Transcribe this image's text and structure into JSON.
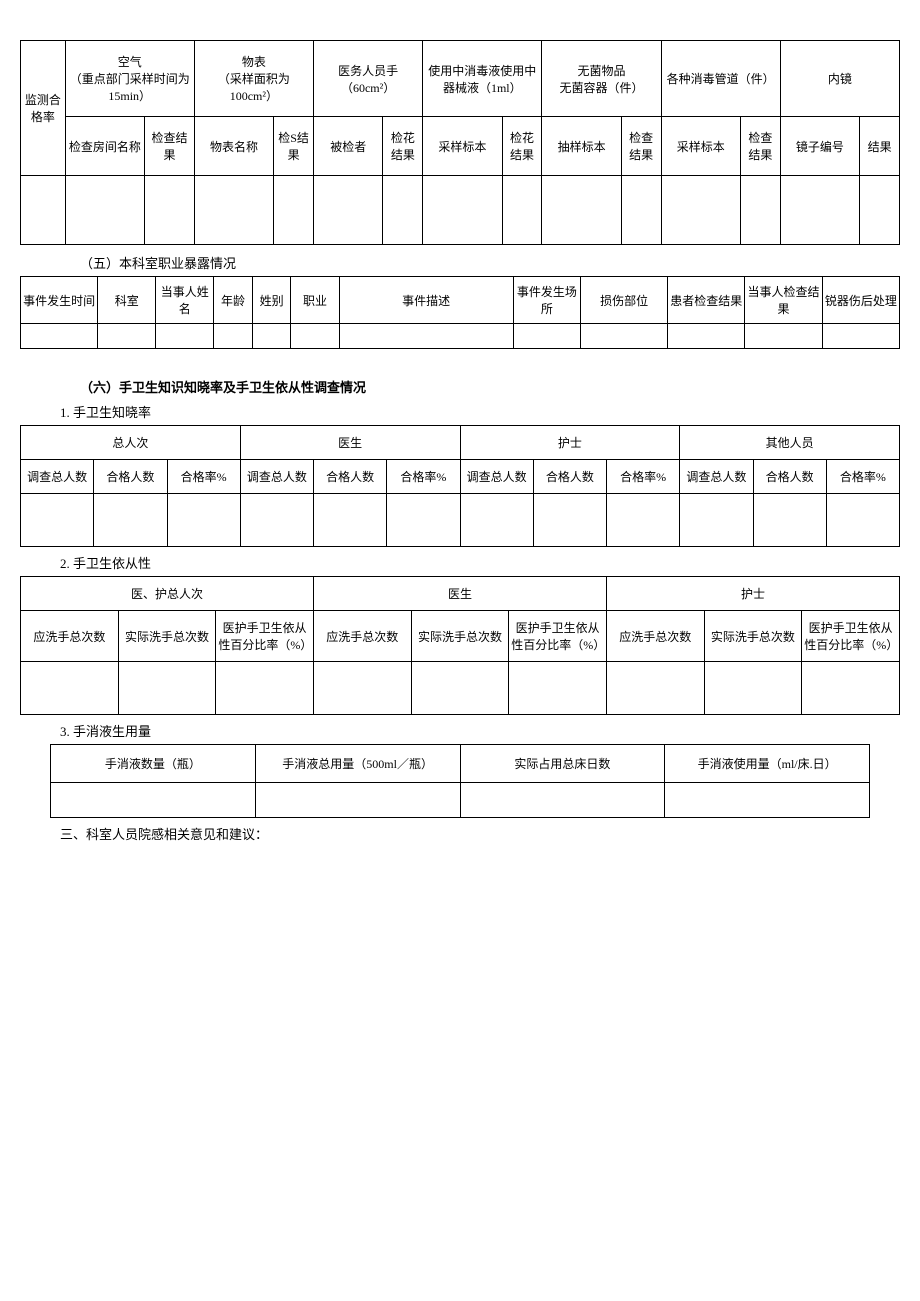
{
  "table1": {
    "rowLabel": "监测合格率",
    "groupHeaders": [
      "空气\n（重点部门采样时间为 15min）",
      "物表\n（采样面积为100cm²）",
      "医务人员手（60cm²）",
      "使用中消毒液使用中器械液（1ml）",
      "无菌物品\n无菌容器（件）",
      "各种消毒管道（件）",
      "内镜"
    ],
    "subHeaders": [
      "检查房间名称",
      "检查结果",
      "物表名称",
      "检S结果",
      "被检者",
      "检花结果",
      "采样标本",
      "检花结果",
      "抽样标本",
      "检查结果",
      "采样标本",
      "检查结果",
      "镜子编号",
      "结果"
    ]
  },
  "section5Title": "（五）本科室职业暴露情况",
  "table2": {
    "headers": [
      "事件发生时间",
      "科室",
      "当事人姓名",
      "年龄",
      "姓别",
      "职业",
      "事件描述",
      "事件发生场所",
      "损伤部位",
      "患者检查结果",
      "当事人检查结果",
      "锐器伤后处理"
    ]
  },
  "section6Title": "（六）手卫生知识知晓率及手卫生依从性调查情况",
  "sub1Title": "1. 手卫生知晓率",
  "table3": {
    "groupHeaders": [
      "总人次",
      "医生",
      "护士",
      "其他人员"
    ],
    "subHeaders": [
      "调查总人数",
      "合格人数",
      "合格率%",
      "调查总人数",
      "合格人数",
      "合格率%",
      "调查总人数",
      "合格人数",
      "合格率%",
      "调查总人数",
      "合格人数",
      "合格率%"
    ]
  },
  "sub2Title": "2. 手卫生依从性",
  "table4": {
    "groupHeaders": [
      "医、护总人次",
      "医生",
      "护士"
    ],
    "subHeaders": [
      "应洗手总次数",
      "实际洗手总次数",
      "医护手卫生依从性百分比率（%）",
      "应洗手总次数",
      "实际洗手总次数",
      "医护手卫生依从性百分比率（%）",
      "应洗手总次数",
      "实际洗手总次数",
      "医护手卫生依从性百分比率（%）"
    ]
  },
  "sub3Title": "3. 手消液生用量",
  "table5": {
    "headers": [
      "手消液数量（瓶）",
      "手消液总用量（500ml／瓶）",
      "实际占用总床日数",
      "手消液使用量（ml/床.日）"
    ]
  },
  "section3Title": "三、科室人员院感相关意见和建议："
}
